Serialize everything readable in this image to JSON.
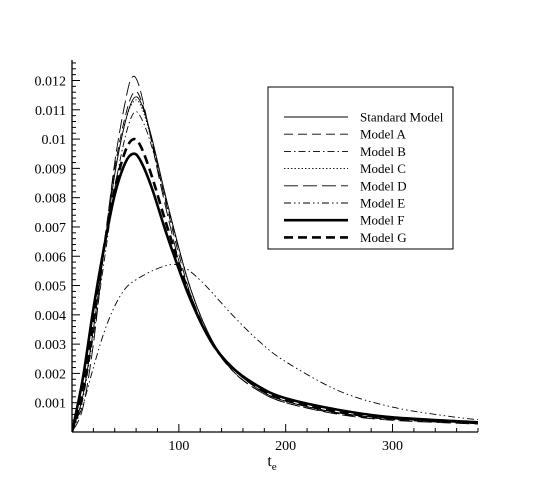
{
  "chart_data": {
    "type": "line",
    "title": "",
    "xlabel": "t",
    "xlabel_subscript": "e",
    "ylabel": "",
    "xlim": [
      0,
      380
    ],
    "ylim": [
      0,
      0.0127
    ],
    "x_ticks": [
      100,
      200,
      300
    ],
    "y_ticks": [
      0.001,
      0.002,
      0.003,
      0.004,
      0.005,
      0.006,
      0.007,
      0.008,
      0.009,
      0.01,
      0.011,
      0.012
    ],
    "y_tick_labels": [
      "0.001",
      "0.002",
      "0.003",
      "0.004",
      "0.005",
      "0.006",
      "0.007",
      "0.008",
      "0.009",
      "0.01",
      "0.011",
      "0.012"
    ],
    "grid": false,
    "legend_position": "top-right",
    "series": [
      {
        "name": "Standard Model",
        "style": "thin-solid",
        "x": [
          0,
          10,
          20,
          30,
          40,
          50,
          58,
          65,
          75,
          90,
          110,
          130,
          150,
          175,
          200,
          250,
          300,
          380
        ],
        "y": [
          0,
          0.0012,
          0.0035,
          0.0062,
          0.0088,
          0.0106,
          0.0114,
          0.0112,
          0.01,
          0.0077,
          0.005,
          0.0032,
          0.0022,
          0.00145,
          0.00105,
          0.00065,
          0.00045,
          0.0003
        ]
      },
      {
        "name": "Model A",
        "style": "dashed",
        "x": [
          0,
          10,
          20,
          30,
          40,
          50,
          58,
          65,
          75,
          90,
          110,
          130,
          150,
          175,
          200,
          250,
          300,
          380
        ],
        "y": [
          0,
          0.0013,
          0.0037,
          0.0064,
          0.009,
          0.0108,
          0.0116,
          0.0113,
          0.0099,
          0.0075,
          0.0048,
          0.0031,
          0.0021,
          0.0014,
          0.001,
          0.00062,
          0.00042,
          0.00028
        ]
      },
      {
        "name": "Model B",
        "style": "dash-dot",
        "x": [
          0,
          10,
          20,
          30,
          40,
          50,
          58,
          65,
          75,
          90,
          110,
          130,
          150,
          175,
          200,
          250,
          300,
          380
        ],
        "y": [
          0,
          0.0011,
          0.0033,
          0.0058,
          0.0083,
          0.0101,
          0.0109,
          0.0107,
          0.0097,
          0.0076,
          0.005,
          0.0032,
          0.0022,
          0.00145,
          0.00105,
          0.00065,
          0.00045,
          0.0003
        ]
      },
      {
        "name": "Model C",
        "style": "dotted",
        "x": [
          0,
          10,
          20,
          30,
          40,
          50,
          58,
          65,
          75,
          90,
          110,
          130,
          150,
          175,
          200,
          250,
          300,
          380
        ],
        "y": [
          0,
          0.0012,
          0.0035,
          0.0062,
          0.0088,
          0.0106,
          0.0113,
          0.0111,
          0.0099,
          0.0077,
          0.005,
          0.0032,
          0.0022,
          0.00145,
          0.00105,
          0.00065,
          0.00045,
          0.0003
        ]
      },
      {
        "name": "Model D",
        "style": "long-dash",
        "x": [
          0,
          10,
          20,
          30,
          40,
          50,
          56,
          62,
          70,
          85,
          105,
          125,
          150,
          175,
          200,
          250,
          300,
          380
        ],
        "y": [
          0,
          0.0008,
          0.003,
          0.0062,
          0.0092,
          0.0113,
          0.0121,
          0.0119,
          0.0107,
          0.0081,
          0.0052,
          0.0034,
          0.0021,
          0.0014,
          0.001,
          0.0006,
          0.0004,
          0.00027
        ]
      },
      {
        "name": "Model E",
        "style": "dash-dot-dot",
        "x": [
          0,
          10,
          20,
          30,
          40,
          50,
          60,
          75,
          90,
          100,
          110,
          125,
          150,
          175,
          200,
          250,
          300,
          350,
          380
        ],
        "y": [
          0,
          0.0009,
          0.0022,
          0.0034,
          0.0043,
          0.0049,
          0.0052,
          0.0055,
          0.0057,
          0.0057,
          0.0055,
          0.005,
          0.004,
          0.0031,
          0.0024,
          0.0014,
          0.00085,
          0.00055,
          0.00042
        ]
      },
      {
        "name": "Model F",
        "style": "thick-solid",
        "x": [
          0,
          10,
          20,
          30,
          40,
          50,
          58,
          65,
          75,
          90,
          110,
          130,
          150,
          175,
          200,
          250,
          300,
          380
        ],
        "y": [
          0,
          0.0018,
          0.0042,
          0.0063,
          0.0081,
          0.0092,
          0.0095,
          0.0092,
          0.0083,
          0.0066,
          0.0046,
          0.0031,
          0.0022,
          0.00155,
          0.00115,
          0.00075,
          0.0005,
          0.00033
        ]
      },
      {
        "name": "Model G",
        "style": "thick-dashed",
        "x": [
          0,
          10,
          20,
          30,
          40,
          50,
          58,
          65,
          75,
          90,
          110,
          130,
          150,
          175,
          200,
          250,
          300,
          380
        ],
        "y": [
          0,
          0.0016,
          0.004,
          0.0063,
          0.0083,
          0.0096,
          0.01,
          0.0097,
          0.0087,
          0.0069,
          0.0047,
          0.0031,
          0.0022,
          0.0015,
          0.0011,
          0.0007,
          0.00048,
          0.00032
        ]
      }
    ]
  }
}
